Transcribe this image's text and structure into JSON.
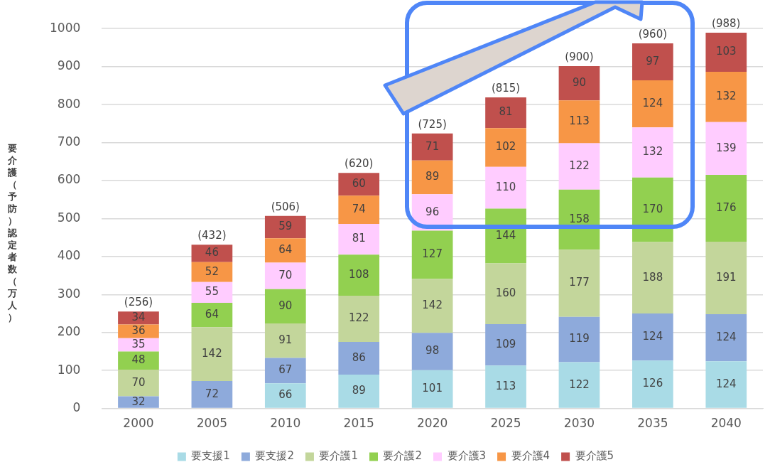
{
  "chart_data": {
    "type": "bar",
    "stacked": true,
    "ylabel": "要介護（予防）認定者数（万人）",
    "categories": [
      "2000",
      "2005",
      "2010",
      "2015",
      "2020",
      "2025",
      "2030",
      "2035",
      "2040"
    ],
    "series": [
      {
        "name": "要支援1",
        "color": "#a9dbe6",
        "values": [
          null,
          null,
          66,
          89,
          101,
          113,
          122,
          126,
          124
        ]
      },
      {
        "name": "要支援2",
        "color": "#8eaadb",
        "values": [
          32,
          72,
          67,
          86,
          98,
          109,
          119,
          124,
          124
        ]
      },
      {
        "name": "要介護1",
        "color": "#c3d69b",
        "values": [
          70,
          142,
          91,
          122,
          142,
          160,
          177,
          188,
          191
        ]
      },
      {
        "name": "要介護2",
        "color": "#92d050",
        "values": [
          48,
          64,
          90,
          108,
          127,
          144,
          158,
          170,
          176
        ]
      },
      {
        "name": "要介護3",
        "color": "#ffccff",
        "values": [
          35,
          55,
          70,
          81,
          96,
          110,
          122,
          132,
          139
        ]
      },
      {
        "name": "要介護4",
        "color": "#f79646",
        "values": [
          36,
          52,
          64,
          74,
          89,
          102,
          113,
          124,
          132
        ]
      },
      {
        "name": "要介護5",
        "color": "#c0504d",
        "values": [
          34,
          46,
          59,
          60,
          71,
          81,
          90,
          97,
          103
        ]
      }
    ],
    "totals": [
      "(256)",
      "(432)",
      "(506)",
      "(620)",
      "(725)",
      "(815)",
      "(900)",
      "(960)",
      "(988)"
    ],
    "data_labels": true,
    "ylim": [
      0,
      1000
    ],
    "yticks": [
      0,
      100,
      200,
      300,
      400,
      500,
      600,
      700,
      800,
      900,
      1000
    ],
    "grid": "y",
    "legend": "bottom"
  }
}
